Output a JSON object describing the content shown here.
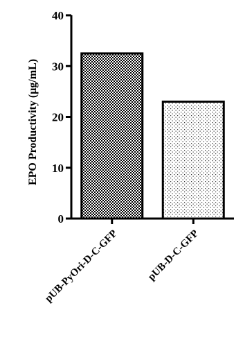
{
  "chart_data": {
    "type": "bar",
    "categories": [
      "pUB-PyOri-D-C-GFP",
      "pUB-D-C-GFP"
    ],
    "values": [
      32.5,
      23
    ],
    "ylabel": "EPO Productivity (μg/mL)",
    "xlabel": "",
    "ylim": [
      0,
      40
    ],
    "yticks": [
      0,
      10,
      20,
      30,
      40
    ],
    "patterns": [
      "checkerboard",
      "dots"
    ],
    "grid": false
  }
}
